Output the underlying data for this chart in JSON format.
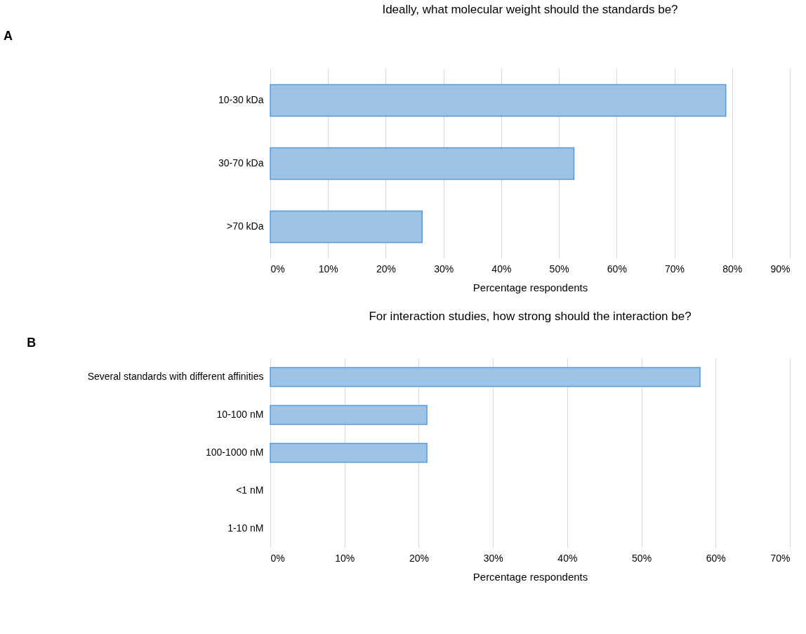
{
  "chart_data": [
    {
      "type": "bar",
      "orientation": "horizontal",
      "title": "Ideally, what molecular weight should the standards be?",
      "xlabel": "Percentage respondents",
      "categories": [
        "10-30 kDa",
        "30-70 kDa",
        ">70 kDa"
      ],
      "values": [
        78.9,
        52.6,
        26.3
      ],
      "color": "#9dc3e6",
      "xlim": [
        0,
        90
      ],
      "xticks": [
        {
          "value": 0,
          "label": "0%"
        },
        {
          "value": 10,
          "label": "10%"
        },
        {
          "value": 20,
          "label": "20%"
        },
        {
          "value": 30,
          "label": "30%"
        },
        {
          "value": 40,
          "label": "40%"
        },
        {
          "value": 50,
          "label": "50%"
        },
        {
          "value": 60,
          "label": "60%"
        },
        {
          "value": 70,
          "label": "70%"
        },
        {
          "value": 80,
          "label": "80%"
        },
        {
          "value": 90,
          "label": "90%"
        }
      ],
      "grid": "x",
      "annotations": [
        "A"
      ]
    },
    {
      "type": "bar",
      "orientation": "horizontal",
      "title": "For interaction studies, how strong should the interaction be?",
      "xlabel": "Percentage respondents",
      "categories": [
        "Several standards with different affinities",
        "10-100 nM",
        "100-1000 nM",
        "<1 nM",
        "1-10 nM"
      ],
      "values": [
        57.9,
        21.1,
        21.1,
        0,
        0
      ],
      "color": "#9dc3e6",
      "xlim": [
        0,
        70
      ],
      "xticks": [
        {
          "value": 0,
          "label": "0%"
        },
        {
          "value": 10,
          "label": "10%"
        },
        {
          "value": 20,
          "label": "20%"
        },
        {
          "value": 30,
          "label": "30%"
        },
        {
          "value": 40,
          "label": "40%"
        },
        {
          "value": 50,
          "label": "50%"
        },
        {
          "value": 60,
          "label": "60%"
        },
        {
          "value": 70,
          "label": "70%"
        }
      ],
      "grid": "x",
      "annotations": [
        "B"
      ]
    }
  ]
}
